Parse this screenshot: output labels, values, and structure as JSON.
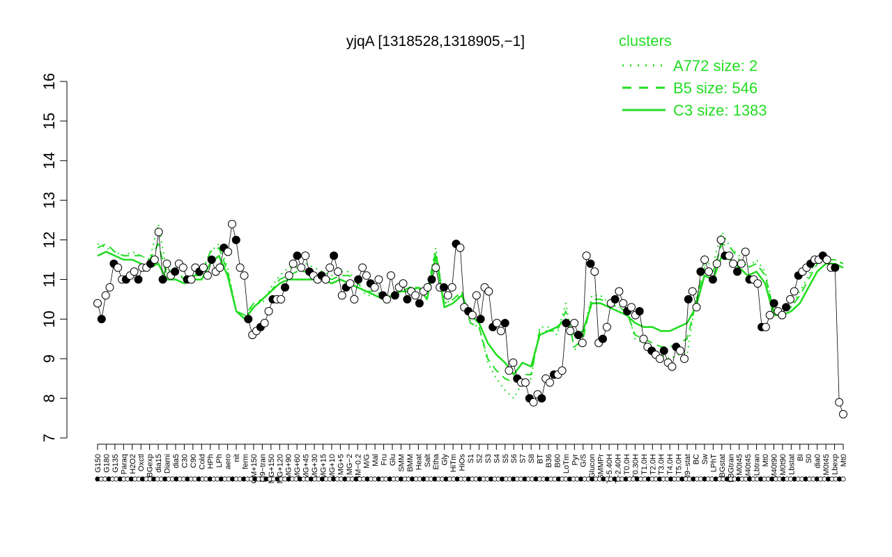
{
  "chart_data": {
    "type": "line",
    "title": "yjqA [1318528,1318905,−1]",
    "ylim": [
      7,
      16
    ],
    "y_ticks": [
      7,
      8,
      9,
      10,
      11,
      12,
      13,
      14,
      15,
      16
    ],
    "x_tick_labels": [
      "G150",
      "G180",
      "G135",
      "Paraq",
      "H2O2",
      "Oxctl",
      "LBGexp",
      "dia15",
      "Diami",
      "dia5",
      "C30",
      "C90",
      "Cold",
      "HPh",
      "LPh",
      "aero",
      "nit",
      "ferm",
      "GM+150",
      "M9−tran",
      "MG+150",
      "MG+120",
      "MG+90",
      "MG+60",
      "MG+45",
      "MG+30",
      "MG+15",
      "MG+10",
      "MG+5",
      "MG−2",
      "GM−0.2",
      "M/G",
      "Mal",
      "Fru",
      "Glu",
      "SMM",
      "BMM",
      "Heat",
      "Salt",
      "Etha",
      "Gly",
      "HiTm",
      "HiOs",
      "S1",
      "S2",
      "S3",
      "S4",
      "S5",
      "S6",
      "S7",
      "S8",
      "BT",
      "B36",
      "B60",
      "LoTm",
      "Pyr",
      "G/S",
      "Glucon",
      "SMMPr",
      "T−5.40H",
      "T−2.40H",
      "T0.0H",
      "T0.30H",
      "T1.0H",
      "T2.0H",
      "T3.0H",
      "T4.0H",
      "T5.0H",
      "M9−stat",
      "BC",
      "Sw",
      "LPhT",
      "LBGstat",
      "LBGtran",
      "M0t45",
      "M40t45",
      "Lbtran",
      "Mt0",
      "M40t90",
      "M0t90",
      "Lbstat",
      "BI",
      "S0",
      "dia0",
      "M0t45",
      "Lbexp",
      "Mt0"
    ],
    "legend": {
      "title": "clusters",
      "placement": "top-right",
      "entries": [
        "A772 size: 2",
        "B5 size: 546",
        "C3 size: 1383"
      ]
    },
    "series": [
      {
        "name": "A772 size: 2",
        "style": "dotted",
        "values": [
          11.9,
          11.8,
          11.7,
          11.6,
          11.7,
          11.6,
          11.5,
          12.4,
          11.2,
          11.3,
          11.0,
          11.1,
          11.2,
          11.7,
          11.9,
          11.3,
          10.2,
          10.0,
          10.4,
          10.4,
          10.8,
          11.1,
          11.3,
          11.3,
          11.4,
          11.3,
          11.2,
          11.1,
          11.2,
          11.2,
          10.9,
          10.6,
          10.6,
          10.5,
          10.6,
          10.7,
          10.8,
          10.8,
          10.7,
          11.8,
          10.4,
          10.5,
          10.6,
          9.9,
          9.8,
          8.9,
          8.5,
          8.2,
          8.0,
          8.4,
          8.5,
          9.8,
          9.8,
          9.6,
          10.4,
          9.2,
          9.6,
          10.6,
          10.6,
          10.4,
          10.3,
          10.3,
          9.5,
          9.4,
          9.2,
          9.1,
          9.0,
          9.1,
          9.1,
          10.5,
          11.4,
          11.4,
          12.2,
          11.8,
          11.6,
          11.3,
          11.5,
          11.2,
          10.2,
          10.2,
          10.3,
          10.7,
          11.1,
          11.5,
          11.5,
          11.5,
          11.4
        ]
      },
      {
        "name": "B5 size: 546",
        "style": "dashed",
        "values": [
          11.8,
          11.9,
          11.7,
          11.6,
          11.6,
          11.6,
          11.5,
          11.9,
          11.1,
          11.2,
          11.0,
          11.1,
          11.1,
          11.7,
          11.8,
          11.2,
          10.2,
          10.1,
          10.4,
          10.5,
          10.7,
          11.0,
          11.1,
          11.2,
          11.2,
          11.1,
          11.1,
          11.0,
          11.1,
          11.1,
          10.9,
          10.7,
          10.7,
          10.6,
          10.6,
          10.7,
          10.8,
          10.8,
          10.7,
          11.7,
          10.4,
          10.5,
          10.7,
          9.9,
          9.8,
          9.0,
          8.7,
          8.5,
          8.4,
          8.6,
          8.6,
          9.7,
          9.7,
          9.7,
          10.2,
          9.3,
          9.5,
          10.5,
          10.5,
          10.4,
          10.3,
          10.2,
          9.6,
          9.5,
          9.4,
          9.3,
          9.3,
          9.4,
          9.5,
          10.4,
          11.3,
          11.2,
          11.9,
          11.8,
          11.5,
          11.3,
          11.4,
          11.1,
          10.2,
          10.2,
          10.3,
          10.6,
          11.0,
          11.4,
          11.5,
          11.5,
          11.4
        ]
      },
      {
        "name": "C3 size: 1383",
        "style": "solid",
        "values": [
          11.6,
          11.7,
          11.6,
          11.5,
          11.5,
          11.4,
          11.3,
          11.4,
          11.0,
          11.0,
          10.9,
          11.0,
          11.0,
          11.4,
          11.6,
          11.1,
          10.2,
          10.0,
          10.3,
          10.5,
          10.7,
          10.9,
          11.0,
          11.0,
          11.0,
          11.0,
          11.0,
          10.9,
          11.0,
          10.9,
          10.8,
          10.7,
          10.6,
          10.5,
          10.6,
          10.7,
          10.7,
          10.8,
          10.5,
          11.6,
          10.3,
          10.4,
          10.6,
          10.1,
          9.9,
          9.4,
          9.1,
          8.9,
          8.6,
          8.9,
          8.8,
          9.6,
          9.7,
          9.8,
          10.0,
          9.6,
          9.7,
          10.4,
          10.4,
          10.3,
          10.2,
          10.1,
          9.9,
          9.8,
          9.8,
          9.7,
          9.7,
          9.8,
          9.9,
          10.3,
          11.1,
          11.0,
          11.6,
          11.5,
          11.3,
          11.1,
          11.2,
          10.9,
          10.1,
          10.1,
          10.2,
          10.4,
          10.8,
          11.2,
          11.4,
          11.4,
          11.3
        ]
      }
    ],
    "points": {
      "note_values": "expression",
      "values": [
        10.4,
        10.0,
        10.6,
        10.8,
        11.4,
        11.3,
        11.0,
        11.0,
        11.1,
        11.2,
        11.0,
        11.3,
        11.3,
        11.4,
        11.5,
        12.2,
        11.0,
        11.4,
        11.1,
        11.2,
        11.4,
        11.3,
        11.0,
        11.0,
        11.3,
        11.2,
        11.3,
        11.1,
        11.5,
        11.2,
        11.3,
        11.8,
        11.7,
        12.4,
        12.0,
        11.3,
        11.1,
        10.0,
        9.6,
        9.7,
        9.8,
        9.9,
        10.2,
        10.5,
        10.5,
        10.5,
        10.8,
        11.1,
        11.4,
        11.6,
        11.3,
        11.6,
        11.2,
        11.1,
        11.0,
        11.1,
        11.0,
        11.3,
        11.6,
        11.2,
        10.6,
        10.8,
        10.9,
        10.5,
        11.0,
        11.3,
        11.1,
        10.9,
        10.8,
        11.0,
        10.6,
        10.5,
        11.1,
        10.6,
        10.8,
        10.9,
        10.5,
        10.7,
        10.6,
        10.4,
        10.7,
        10.8,
        11.0,
        11.3,
        10.8,
        10.8,
        10.6,
        10.8,
        11.9,
        11.8,
        10.3,
        10.2,
        10.1,
        10.6,
        10.0,
        10.8,
        10.7,
        9.8,
        9.9,
        9.7,
        9.9,
        8.7,
        8.9,
        8.5,
        8.4,
        8.4,
        8.0,
        7.9,
        8.1,
        8.0,
        8.5,
        8.4,
        8.6,
        8.6,
        8.7,
        9.9,
        9.7,
        9.9,
        9.6,
        9.4,
        11.6,
        11.4,
        11.2,
        9.4,
        9.5,
        9.8,
        10.4,
        10.5,
        10.7,
        10.4,
        10.2,
        10.3,
        10.1,
        10.2,
        9.5,
        9.3,
        9.2,
        9.1,
        9.0,
        9.2,
        8.9,
        8.8,
        9.3,
        9.2,
        9.0,
        10.5,
        10.7,
        10.3,
        11.2,
        11.5,
        11.2,
        11.0,
        11.4,
        12.0,
        11.6,
        11.6,
        11.4,
        11.2,
        11.4,
        11.7,
        11.0,
        11.0,
        10.9,
        9.8,
        9.8,
        10.1,
        10.4,
        10.2,
        10.1,
        10.3,
        10.5,
        10.7,
        11.1,
        11.2,
        11.3,
        11.4,
        11.5,
        11.5,
        11.6,
        11.5,
        11.3,
        11.3,
        7.9,
        7.6
      ]
    }
  }
}
